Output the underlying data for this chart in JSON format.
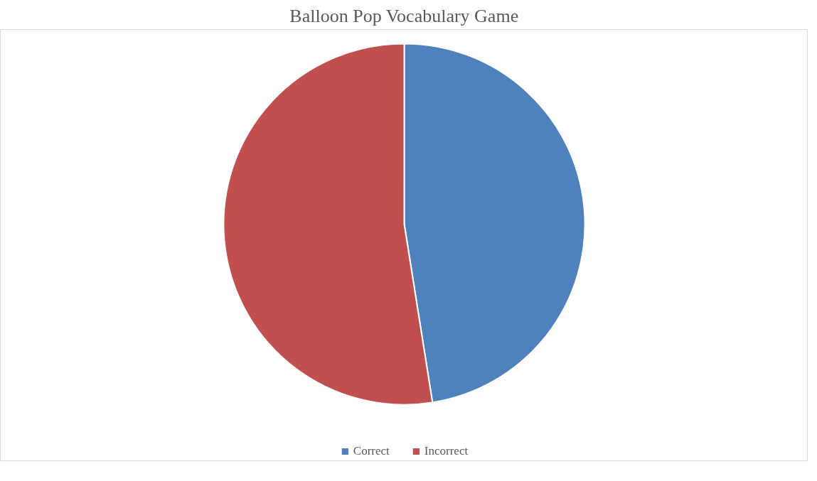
{
  "chart_data": {
    "type": "pie",
    "title": "Balloon Pop Vocabulary Game",
    "categories": [
      "Correct",
      "Incorrect"
    ],
    "values": [
      47.5,
      52.5
    ],
    "colors": [
      "#4f81bd",
      "#c0504d"
    ],
    "legend": "bottom"
  }
}
